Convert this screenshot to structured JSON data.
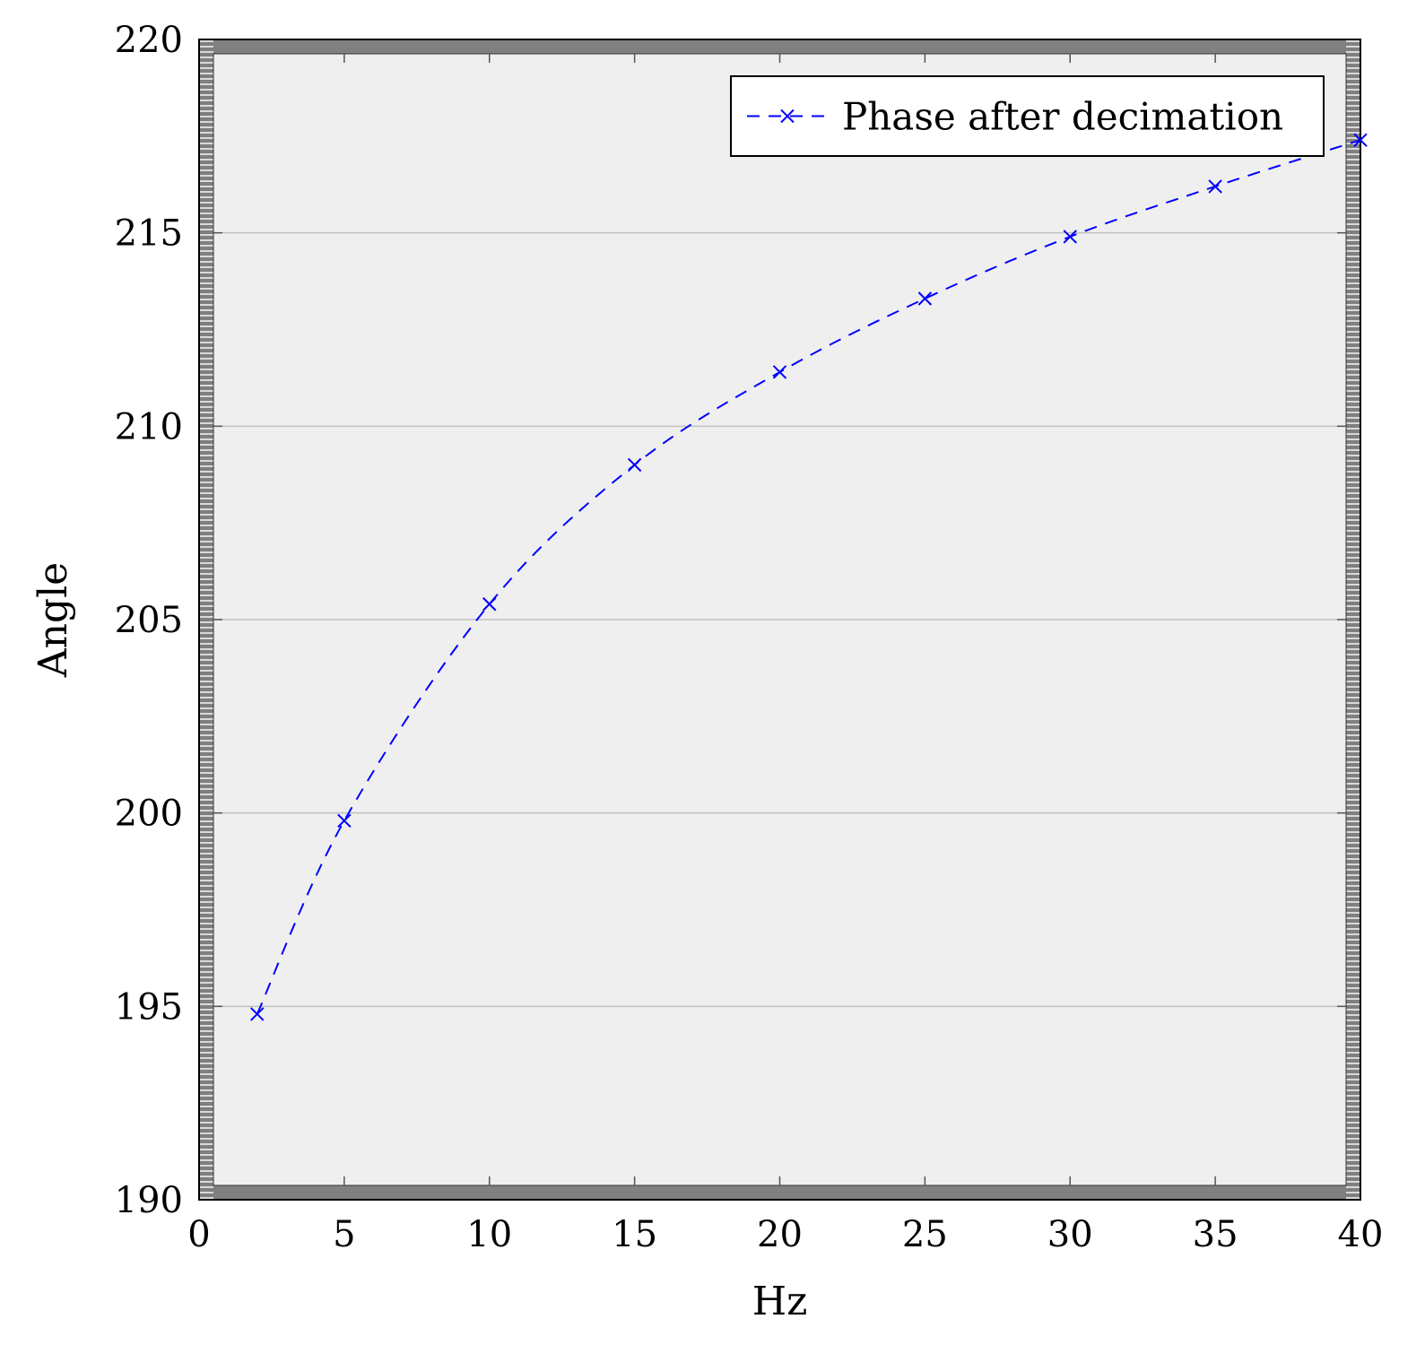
{
  "chart_data": {
    "type": "line",
    "title": "",
    "xlabel": "Hz",
    "ylabel": "Angle",
    "xlim": [
      0,
      40
    ],
    "ylim": [
      190,
      220
    ],
    "x_ticks": [
      0,
      5,
      10,
      15,
      20,
      25,
      30,
      35,
      40
    ],
    "y_ticks": [
      190,
      195,
      200,
      205,
      210,
      215,
      220
    ],
    "grid": "horizontal",
    "legend_position": "top-right",
    "series": [
      {
        "name": "Phase after decimation",
        "color": "#0000ff",
        "line_style": "dashed",
        "marker": "x",
        "x": [
          2,
          5,
          10,
          15,
          20,
          25,
          30,
          35,
          40
        ],
        "y": [
          194.8,
          199.8,
          205.4,
          209.0,
          211.4,
          213.3,
          214.9,
          216.2,
          217.4
        ]
      }
    ],
    "colors": {
      "plot_background": "#efefef",
      "frame": "#808080",
      "grid": "#c0c0c0"
    }
  }
}
